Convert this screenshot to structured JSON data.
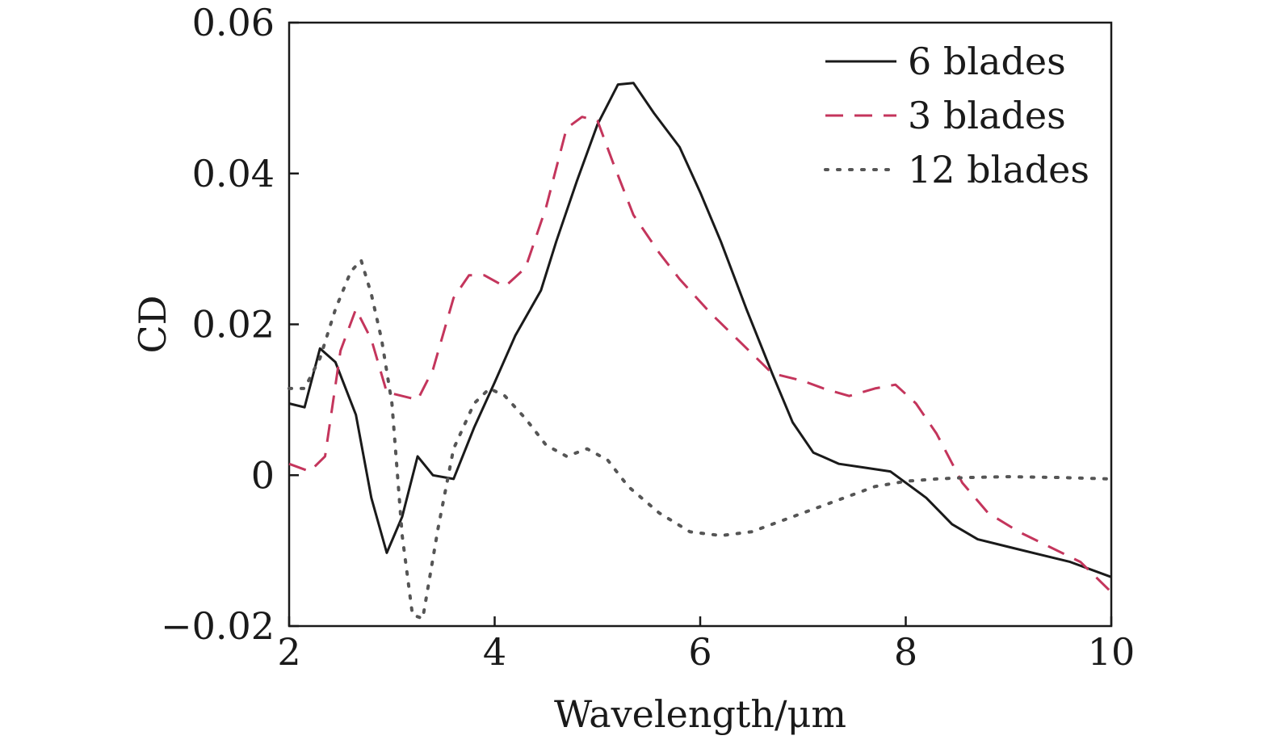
{
  "chart_data": {
    "type": "line",
    "xlabel": "Wavelength/μm",
    "ylabel": "CD",
    "xlim": [
      2,
      10
    ],
    "ylim": [
      -0.02,
      0.06
    ],
    "xticks": [
      2,
      4,
      6,
      8,
      10
    ],
    "xtick_labels": [
      "2",
      "4",
      "6",
      "8",
      "10"
    ],
    "yticks": [
      -0.02,
      0,
      0.02,
      0.04,
      0.06
    ],
    "ytick_labels": [
      "−0.02",
      "0",
      "0.02",
      "0.04",
      "0.06"
    ],
    "grid": false,
    "legend_position": "top-right",
    "series": [
      {
        "name": "6 blades",
        "color": "#1a1a1a",
        "style": "solid",
        "x": [
          2.0,
          2.15,
          2.3,
          2.45,
          2.65,
          2.8,
          2.95,
          3.1,
          3.25,
          3.4,
          3.6,
          3.8,
          4.0,
          4.2,
          4.45,
          4.6,
          4.8,
          5.0,
          5.2,
          5.35,
          5.55,
          5.8,
          6.0,
          6.2,
          6.45,
          6.7,
          6.9,
          7.1,
          7.35,
          7.6,
          7.85,
          8.0,
          8.2,
          8.45,
          8.7,
          9.0,
          9.3,
          9.6,
          10.0
        ],
        "y": [
          0.0095,
          0.009,
          0.0168,
          0.015,
          0.008,
          -0.003,
          -0.0103,
          -0.0055,
          0.0025,
          0.0,
          -0.0005,
          0.0063,
          0.0123,
          0.0185,
          0.0245,
          0.031,
          0.039,
          0.0465,
          0.0518,
          0.052,
          0.048,
          0.0435,
          0.0375,
          0.031,
          0.022,
          0.0135,
          0.007,
          0.003,
          0.0015,
          0.001,
          0.0005,
          -0.001,
          -0.003,
          -0.0065,
          -0.0085,
          -0.0095,
          -0.0105,
          -0.0115,
          -0.0135
        ]
      },
      {
        "name": "3 blades",
        "color": "#c4355c",
        "style": "dashed",
        "x": [
          2.0,
          2.2,
          2.35,
          2.5,
          2.65,
          2.8,
          2.95,
          3.1,
          3.25,
          3.4,
          3.6,
          3.75,
          3.9,
          4.1,
          4.3,
          4.5,
          4.7,
          4.85,
          5.0,
          5.15,
          5.35,
          5.6,
          5.8,
          6.1,
          6.4,
          6.7,
          7.0,
          7.2,
          7.45,
          7.7,
          7.9,
          8.1,
          8.3,
          8.55,
          8.8,
          9.1,
          9.4,
          9.7,
          10.0
        ],
        "y": [
          0.0015,
          0.0005,
          0.0025,
          0.0165,
          0.022,
          0.018,
          0.011,
          0.0105,
          0.01,
          0.014,
          0.0235,
          0.0265,
          0.0265,
          0.025,
          0.0275,
          0.0355,
          0.046,
          0.0475,
          0.047,
          0.0415,
          0.0345,
          0.0295,
          0.026,
          0.0215,
          0.0175,
          0.0135,
          0.0125,
          0.0115,
          0.0105,
          0.0115,
          0.012,
          0.0095,
          0.0055,
          -0.001,
          -0.005,
          -0.0075,
          -0.0095,
          -0.0115,
          -0.0155
        ]
      },
      {
        "name": "12 blades",
        "color": "#555555",
        "style": "dotted",
        "x": [
          2.0,
          2.15,
          2.3,
          2.45,
          2.6,
          2.7,
          2.8,
          2.9,
          3.0,
          3.1,
          3.2,
          3.3,
          3.45,
          3.6,
          3.8,
          3.95,
          4.1,
          4.3,
          4.5,
          4.7,
          4.9,
          5.1,
          5.3,
          5.6,
          5.9,
          6.2,
          6.5,
          6.8,
          7.1,
          7.4,
          7.7,
          8.0,
          8.3,
          8.6,
          9.0,
          9.5,
          10.0
        ],
        "y": [
          0.0115,
          0.0115,
          0.0155,
          0.022,
          0.027,
          0.0285,
          0.024,
          0.018,
          0.0095,
          -0.008,
          -0.0185,
          -0.019,
          -0.007,
          0.0035,
          0.0095,
          0.0115,
          0.0105,
          0.0075,
          0.004,
          0.0025,
          0.0035,
          0.002,
          -0.0015,
          -0.005,
          -0.0075,
          -0.008,
          -0.0075,
          -0.006,
          -0.0045,
          -0.003,
          -0.0015,
          -0.0008,
          -0.0005,
          -0.0003,
          -0.0002,
          -0.0003,
          -0.0005
        ]
      }
    ]
  }
}
